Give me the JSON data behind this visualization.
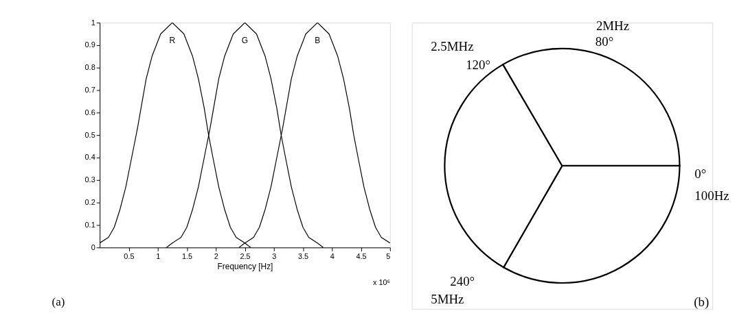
{
  "chart_data": [
    {
      "type": "line",
      "xlabel": "Frequency [Hz]",
      "xlim": [
        0,
        5
      ],
      "ylim": [
        0,
        1
      ],
      "xticks": [
        0.5,
        1,
        1.5,
        2,
        2.5,
        3,
        3.5,
        4,
        4.5,
        5
      ],
      "yticks": [
        0,
        0.1,
        0.2,
        0.3,
        0.4,
        0.5,
        0.6,
        0.7,
        0.8,
        0.9,
        1
      ],
      "grid": false,
      "legend": false,
      "series": [
        {
          "name": "R",
          "color": "#000000",
          "x": [
            0,
            0.15,
            0.25,
            0.35,
            0.45,
            0.55,
            0.65,
            0.8,
            0.9,
            1.05,
            1.25,
            1.45,
            1.6,
            1.7,
            1.8,
            1.875,
            1.95,
            2.05,
            2.15,
            2.25,
            2.35,
            2.5,
            2.6
          ],
          "values": [
            0.02,
            0.045,
            0.09,
            0.17,
            0.27,
            0.4,
            0.53,
            0.75,
            0.85,
            0.95,
            1,
            0.95,
            0.85,
            0.75,
            0.62,
            0.5,
            0.4,
            0.27,
            0.17,
            0.09,
            0.045,
            0.02,
            0
          ]
        },
        {
          "name": "G",
          "color": "#000000",
          "x": [
            1.15,
            1.25,
            1.4,
            1.5,
            1.6,
            1.7,
            1.8,
            1.9,
            2.05,
            2.15,
            2.3,
            2.5,
            2.7,
            2.85,
            2.95,
            3.05,
            3.125,
            3.2,
            3.3,
            3.4,
            3.5,
            3.6,
            3.75,
            3.85
          ],
          "values": [
            0,
            0.02,
            0.045,
            0.09,
            0.17,
            0.27,
            0.4,
            0.53,
            0.75,
            0.85,
            0.95,
            1,
            0.95,
            0.85,
            0.75,
            0.62,
            0.5,
            0.4,
            0.27,
            0.17,
            0.09,
            0.045,
            0.02,
            0
          ]
        },
        {
          "name": "B",
          "color": "#000000",
          "x": [
            2.4,
            2.5,
            2.65,
            2.75,
            2.85,
            2.95,
            3.05,
            3.15,
            3.3,
            3.4,
            3.55,
            3.75,
            3.95,
            4.1,
            4.2,
            4.3,
            4.375,
            4.45,
            4.55,
            4.65,
            4.75,
            4.85,
            5
          ],
          "values": [
            0,
            0.02,
            0.045,
            0.09,
            0.17,
            0.27,
            0.4,
            0.53,
            0.75,
            0.85,
            0.95,
            1,
            0.95,
            0.85,
            0.75,
            0.62,
            0.5,
            0.4,
            0.27,
            0.17,
            0.09,
            0.045,
            0.02
          ]
        }
      ],
      "annotations": [
        "x 10⁶",
        "(a)"
      ]
    },
    {
      "type": "pie",
      "categories": [
        null,
        null,
        null
      ],
      "values": [
        33.3,
        33.3,
        33.4
      ],
      "colors": [
        "#ffffff",
        "#ffffff",
        "#ffffff"
      ],
      "legend": false,
      "annotations": [
        "2MHz",
        "80°",
        "2.5MHz",
        "120°",
        "0°",
        "100Hz",
        "240°",
        "5MHz",
        "(b)"
      ]
    }
  ]
}
